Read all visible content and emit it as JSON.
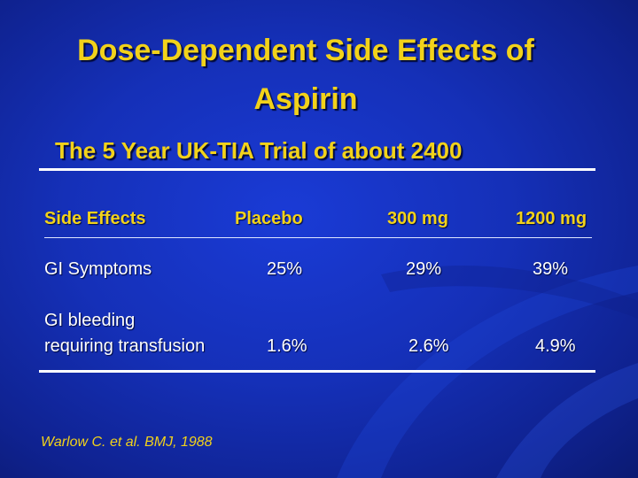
{
  "slide": {
    "title_line1": "Dose-Dependent Side Effects of",
    "title_line2": "Aspirin",
    "subtitle": "The 5 Year UK-TIA Trial of about 2400",
    "citation": "Warlow C. et al. BMJ, 1988"
  },
  "table": {
    "headers": [
      "Side Effects",
      "Placebo",
      "300 mg",
      "1200 mg"
    ],
    "rows": [
      {
        "label_lines": [
          "GI Symptoms"
        ],
        "values": [
          "25%",
          "29%",
          "39%"
        ]
      },
      {
        "label_lines": [
          "GI bleeding",
          "requiring transfusion"
        ],
        "values": [
          "1.6%",
          "2.6%",
          "4.9%"
        ]
      }
    ]
  },
  "colors": {
    "title": "#f2d21a",
    "background": "#1530b8",
    "text": "#ffffff"
  }
}
